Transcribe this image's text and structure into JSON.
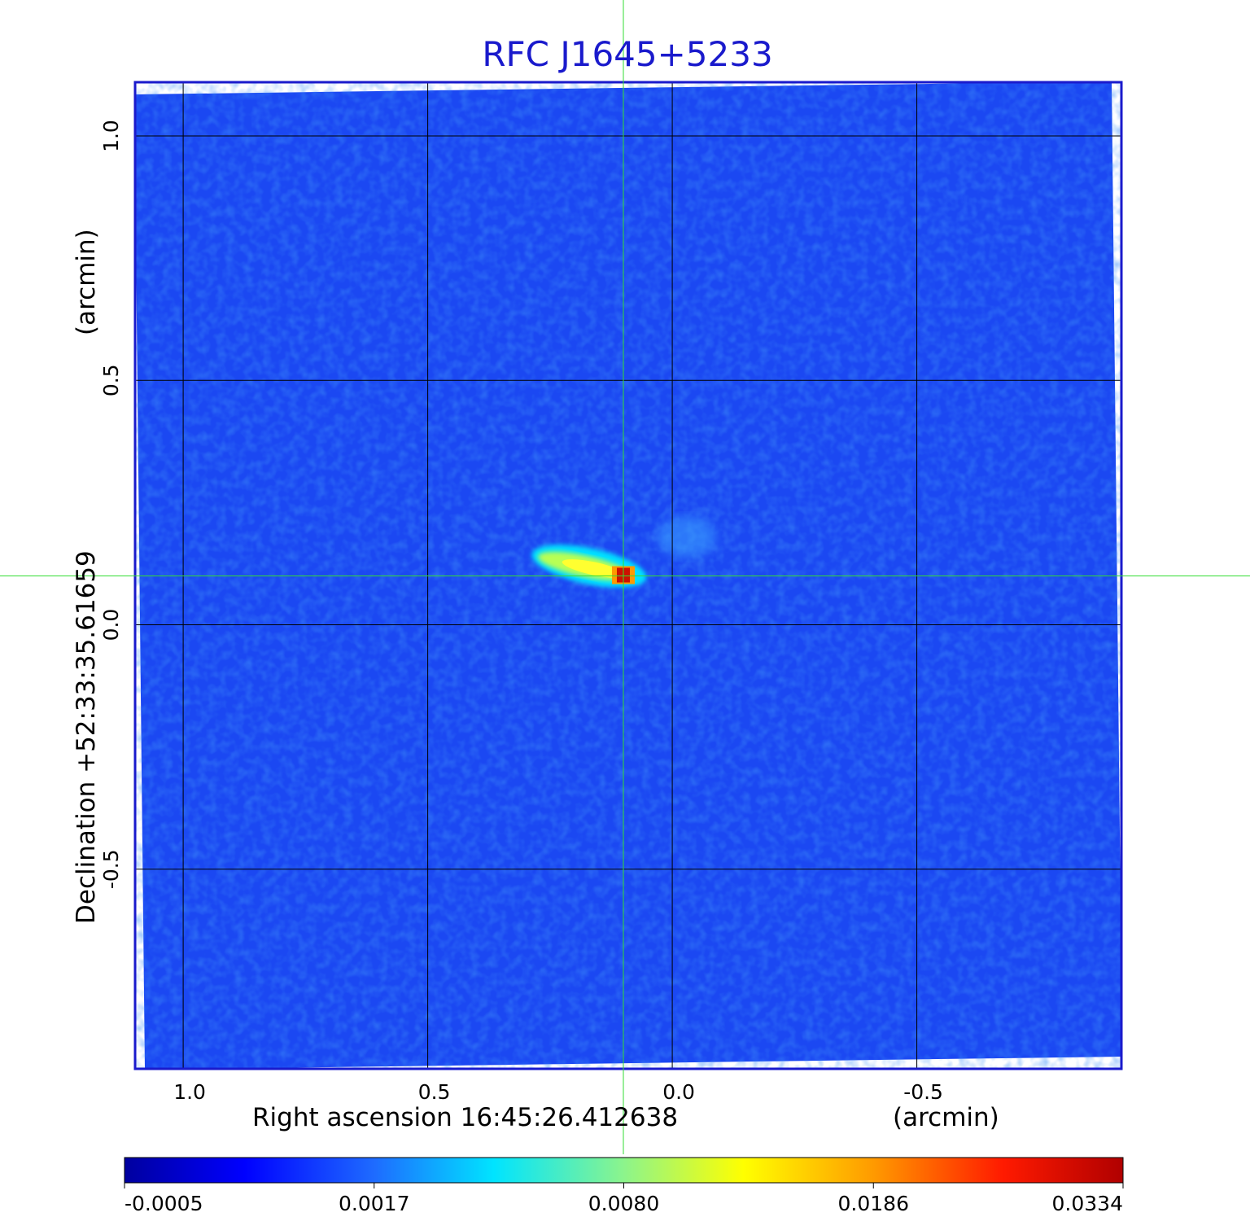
{
  "chart_data": {
    "type": "heatmap",
    "title": "RFC J1645+5233",
    "xlabel": "Right ascension  16:45:26.412638",
    "xlabel_unit": "(arcmin)",
    "ylabel": "Declination  +52:33:35.61659",
    "ylabel_unit": "(arcmin)",
    "x_ticks": [
      1.0,
      0.5,
      0.0,
      -0.5
    ],
    "x_tick_labels": [
      "1.0",
      "0.5",
      "0.0",
      "-0.5"
    ],
    "y_ticks": [
      1.0,
      0.5,
      0.0,
      -0.5
    ],
    "y_tick_labels": [
      "1.0",
      "0.5",
      "0.0",
      "-0.5"
    ],
    "xlim": [
      1.1,
      -0.92
    ],
    "ylim": [
      -0.91,
      1.11
    ],
    "x_reversed": true,
    "grid": true,
    "crosshair": {
      "x": 0.1,
      "y": 0.1
    },
    "colormap": "jet",
    "colorbar_ticks": [
      "-0.0005",
      "0.0017",
      "0.0080",
      "0.0186",
      "0.0334"
    ],
    "colorbar_location": "bottom",
    "peak": {
      "x": 0.1,
      "y": 0.1,
      "value": 0.0334
    },
    "source_components": [
      {
        "x": 0.1,
        "y": 0.1,
        "value": 0.0334
      },
      {
        "x": 0.17,
        "y": 0.12,
        "value": 0.012
      },
      {
        "x": 0.25,
        "y": 0.13,
        "value": 0.008
      },
      {
        "x": -0.03,
        "y": 0.18,
        "value": 0.0022
      }
    ],
    "colors": {
      "frame": "#1a1acc",
      "grid": "#000000",
      "crosshair": "#33dd33",
      "title": "#1a1acc"
    }
  }
}
